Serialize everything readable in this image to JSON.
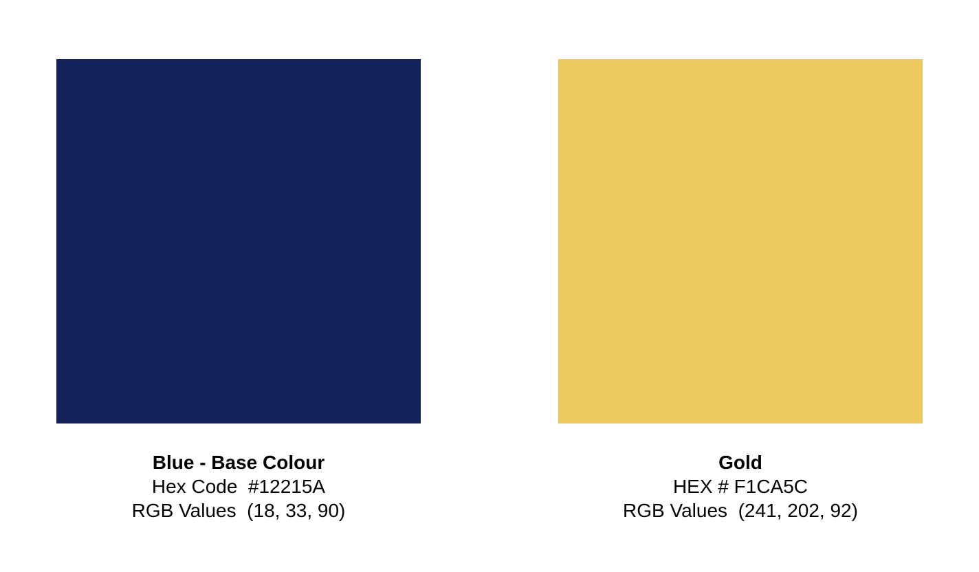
{
  "swatches": [
    {
      "name": "Blue - Base Colour",
      "hex": "Hex Code  #12215A",
      "rgb": "RGB Values  (18, 33, 90)",
      "color": "#12215A"
    },
    {
      "name": "Gold",
      "hex": "HEX # F1CA5C",
      "rgb": "RGB Values  (241, 202, 92)",
      "color": "#EDC85E"
    }
  ]
}
